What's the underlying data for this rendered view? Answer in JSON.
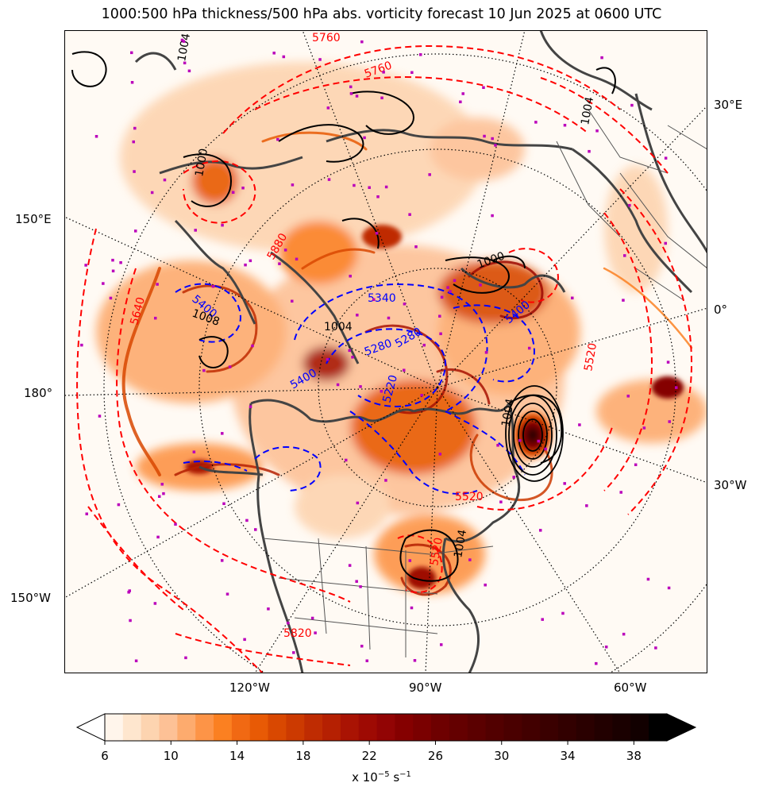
{
  "title": "1000:500 hPa thickness/500 hPa abs. vorticity forecast 10 Jun 2025 at 0600 UTC",
  "longitude_labels": {
    "right": [
      "30°E",
      "0°",
      "30°W"
    ],
    "left": [
      "150°E",
      "180°",
      "150°W"
    ],
    "bottom": [
      "120°W",
      "90°W",
      "60°W"
    ]
  },
  "contour_labels": {
    "thickness_red": [
      "5640",
      "5520",
      "5760",
      "5880",
      "5520",
      "5520",
      "5760",
      "5820"
    ],
    "thickness_blue": [
      "5340",
      "5400",
      "5280",
      "5220",
      "5400",
      "5280",
      "5400"
    ],
    "mslp_black": [
      "1004",
      "1004",
      "1004",
      "1008",
      "1000",
      "1004",
      "1000",
      "1004"
    ]
  },
  "colorbar": {
    "ticks": [
      "6",
      "10",
      "14",
      "18",
      "22",
      "26",
      "30",
      "34",
      "38"
    ],
    "units_prefix": "x 10",
    "units_exp": "−5",
    "units_suffix": " s",
    "units_exp2": "−1",
    "colors": [
      "#fff5eb",
      "#fee6ce",
      "#fdd4b0",
      "#fdc196",
      "#fdab6e",
      "#fd9447",
      "#fb8021",
      "#f16913",
      "#e85a05",
      "#d94801",
      "#cc3a01",
      "#bf2c02",
      "#b52002",
      "#a91303",
      "#9e0a03",
      "#920404",
      "#850000",
      "#7a0000",
      "#6e0000",
      "#640000",
      "#5b0000",
      "#520000",
      "#4a0000",
      "#420000",
      "#3a0000",
      "#320000",
      "#2a0000",
      "#220000",
      "#1a0000",
      "#120000",
      "#000000"
    ],
    "under_color": "#ffffff",
    "over_color": "#000000"
  },
  "colors": {
    "thickness_warm": "#ff0000",
    "thickness_cold": "#0000ff",
    "mslp": "#000000",
    "coastline": "#444444",
    "markers": "#bb00bb"
  }
}
